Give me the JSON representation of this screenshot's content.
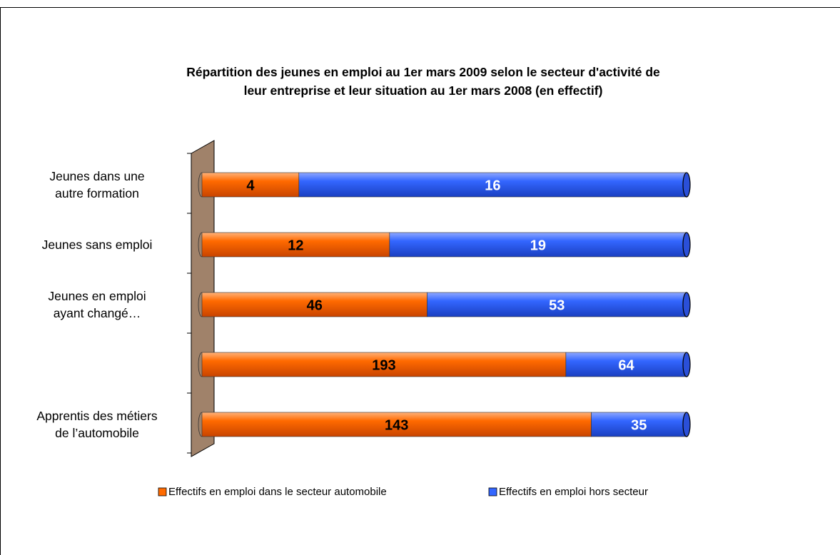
{
  "chart_data": {
    "type": "stacked_bar_100_horizontal",
    "title": "Répartition des jeunes en emploi au 1er mars 2009 selon le secteur d'activité de\nleur entreprise et leur situation au 1er mars 2008 (en effectif)",
    "categories": [
      "Jeunes dans une\nautre formation",
      "Jeunes sans emploi",
      "Jeunes en emploi\nayant changé…",
      null,
      "Apprentis des métiers\nde l’automobile"
    ],
    "series": [
      {
        "name": "Effectifs en emploi dans le secteur automobile",
        "color": "#ff6a00",
        "values": [
          4,
          12,
          46,
          193,
          143
        ]
      },
      {
        "name": "Effectifs en emploi hors secteur",
        "color": "#3366ff",
        "values": [
          16,
          19,
          53,
          64,
          35
        ]
      }
    ],
    "legend": "bottom"
  }
}
